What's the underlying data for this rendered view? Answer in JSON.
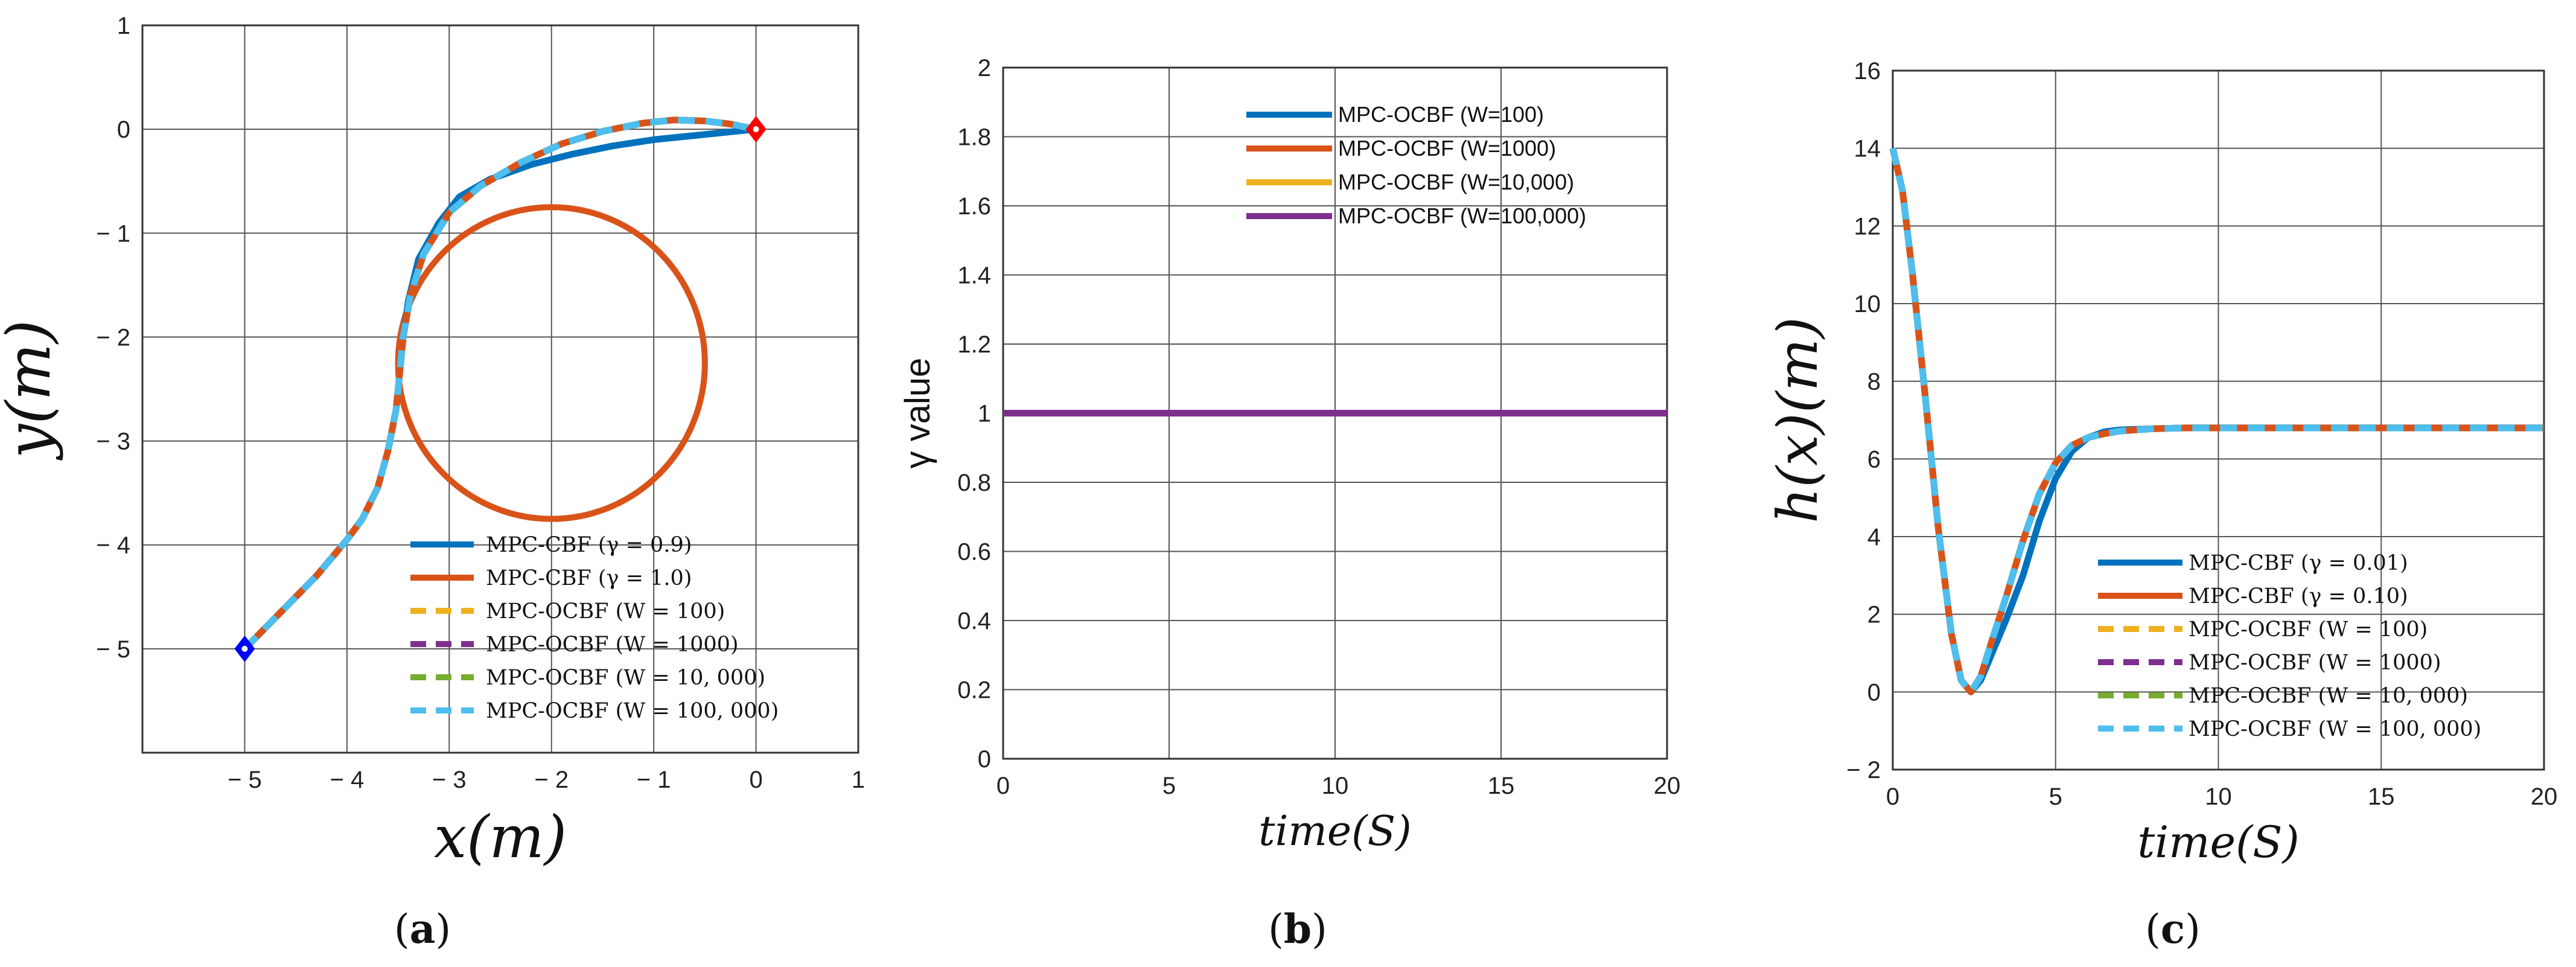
{
  "colors": {
    "blue": "#0072BD",
    "orange": "#D95319",
    "yellow": "#EDB120",
    "purple": "#7E2F8E",
    "green": "#77AC30",
    "cyan": "#4DBEEE",
    "grid": "#555555",
    "start_marker": "#0000ff",
    "end_marker": "#ff0000"
  },
  "chart_data": [
    {
      "id": "a",
      "type": "line",
      "panel_label": {
        "open": "(",
        "letter": "a",
        "close": ")"
      },
      "xlabel": "x(m)",
      "ylabel": "y(m)",
      "xlim": [
        -6,
        1
      ],
      "ylim": [
        -6,
        1
      ],
      "xticks": [
        -5,
        -4,
        -3,
        -2,
        -1,
        0,
        1
      ],
      "yticks": [
        -5,
        -4,
        -3,
        -2,
        -1,
        0,
        1
      ],
      "xtick_labels": [
        "− 5",
        "− 4",
        "− 3",
        "− 2",
        "− 1",
        "0",
        "1"
      ],
      "ytick_labels": [
        "− 5",
        "− 4",
        "− 3",
        "− 2",
        "− 1",
        "0",
        "1"
      ],
      "grid": true,
      "obstacle": {
        "name": "circular obstacle",
        "center": [
          -2,
          -2.25
        ],
        "radius": 1.5,
        "color": "orange"
      },
      "start_point": [
        -5,
        -5
      ],
      "goal_point": [
        0,
        0
      ],
      "series": [
        {
          "name": "MPC-CBF (γ = 0.9)",
          "color": "blue",
          "dashed": false,
          "x": [
            -5,
            -4.6,
            -4.3,
            -4.0,
            -3.85,
            -3.7,
            -3.6,
            -3.52,
            -3.48,
            -3.45,
            -3.4,
            -3.3,
            -3.1,
            -2.9,
            -2.6,
            -2.2,
            -1.8,
            -1.4,
            -1.0,
            -0.6,
            -0.3,
            0
          ],
          "y": [
            -5,
            -4.6,
            -4.3,
            -3.95,
            -3.75,
            -3.45,
            -3.1,
            -2.7,
            -2.3,
            -2.0,
            -1.65,
            -1.25,
            -0.9,
            -0.65,
            -0.48,
            -0.34,
            -0.24,
            -0.16,
            -0.1,
            -0.06,
            -0.03,
            0
          ]
        },
        {
          "name": "MPC-CBF (γ = 1.0)",
          "color": "orange",
          "dashed": false,
          "x": [
            -5,
            -4.6,
            -4.3,
            -4.0,
            -3.85,
            -3.7,
            -3.6,
            -3.52,
            -3.48,
            -3.45,
            -3.38,
            -3.25,
            -3.0,
            -2.7,
            -2.3,
            -1.9,
            -1.5,
            -1.1,
            -0.8,
            -0.5,
            -0.25,
            0
          ],
          "y": [
            -5,
            -4.6,
            -4.3,
            -3.95,
            -3.75,
            -3.45,
            -3.1,
            -2.7,
            -2.3,
            -2.0,
            -1.6,
            -1.2,
            -0.8,
            -0.55,
            -0.32,
            -0.14,
            -0.02,
            0.06,
            0.09,
            0.08,
            0.05,
            0
          ]
        },
        {
          "name": "MPC-OCBF (W = 100)",
          "color": "yellow",
          "dashed": true,
          "same_as": "MPC-CBF (γ = 1.0)"
        },
        {
          "name": "MPC-OCBF (W = 1000)",
          "color": "purple",
          "dashed": true,
          "same_as": "MPC-CBF (γ = 1.0)"
        },
        {
          "name": "MPC-OCBF (W = 10, 000)",
          "color": "green",
          "dashed": true,
          "same_as": "MPC-CBF (γ = 1.0)"
        },
        {
          "name": "MPC-OCBF (W = 100, 000)",
          "color": "cyan",
          "dashed": true,
          "same_as": "MPC-CBF (γ = 1.0)"
        }
      ],
      "legend": [
        {
          "label": "MPC-CBF (γ = 0.9)",
          "color": "blue",
          "dashed": false
        },
        {
          "label": "MPC-CBF (γ = 1.0)",
          "color": "orange",
          "dashed": false
        },
        {
          "label": "MPC-OCBF (W = 100)",
          "color": "yellow",
          "dashed": true
        },
        {
          "label": "MPC-OCBF (W = 1000)",
          "color": "purple",
          "dashed": true
        },
        {
          "label": "MPC-OCBF (W = 10, 000)",
          "color": "green",
          "dashed": true
        },
        {
          "label": "MPC-OCBF (W = 100, 000)",
          "color": "cyan",
          "dashed": true
        }
      ],
      "legend_position": "bottom-right"
    },
    {
      "id": "b",
      "type": "line",
      "panel_label": {
        "open": "(",
        "letter": "b",
        "close": ")"
      },
      "xlabel": "time(S)",
      "ylabel": "γ value",
      "xlim": [
        0,
        20
      ],
      "ylim": [
        0,
        2
      ],
      "xticks": [
        0,
        5,
        10,
        15,
        20
      ],
      "yticks": [
        0,
        0.2,
        0.4,
        0.6,
        0.8,
        1,
        1.2,
        1.4,
        1.6,
        1.8,
        2
      ],
      "xtick_labels": [
        "0",
        "5",
        "10",
        "15",
        "20"
      ],
      "ytick_labels": [
        "0",
        "0.2",
        "0.4",
        "0.6",
        "0.8",
        "1",
        "1.2",
        "1.4",
        "1.6",
        "1.8",
        "2"
      ],
      "grid": true,
      "series": [
        {
          "name": "MPC-OCBF (W=100)",
          "color": "blue",
          "x": [
            0,
            20
          ],
          "y": [
            1,
            1
          ]
        },
        {
          "name": "MPC-OCBF (W=1000)",
          "color": "orange",
          "x": [
            0,
            20
          ],
          "y": [
            1,
            1
          ]
        },
        {
          "name": "MPC-OCBF (W=10,000)",
          "color": "yellow",
          "x": [
            0,
            20
          ],
          "y": [
            1,
            1
          ]
        },
        {
          "name": "MPC-OCBF (W=100,000)",
          "color": "purple",
          "x": [
            0,
            20
          ],
          "y": [
            1,
            1
          ]
        }
      ],
      "legend": [
        {
          "label": "MPC-OCBF (W=100)",
          "color": "blue",
          "dashed": false
        },
        {
          "label": "MPC-OCBF (W=1000)",
          "color": "orange",
          "dashed": false
        },
        {
          "label": "MPC-OCBF (W=10,000)",
          "color": "yellow",
          "dashed": false
        },
        {
          "label": "MPC-OCBF (W=100,000)",
          "color": "purple",
          "dashed": false
        }
      ],
      "legend_position": "top-center"
    },
    {
      "id": "c",
      "type": "line",
      "panel_label": {
        "open": "(",
        "letter": "c",
        "close": ")"
      },
      "xlabel": "time(S)",
      "ylabel": "h(x)(m)",
      "xlim": [
        0,
        20
      ],
      "ylim": [
        -2,
        16
      ],
      "xticks": [
        0,
        5,
        10,
        15,
        20
      ],
      "yticks": [
        -2,
        0,
        2,
        4,
        6,
        8,
        10,
        12,
        14,
        16
      ],
      "xtick_labels": [
        "0",
        "5",
        "10",
        "15",
        "20"
      ],
      "ytick_labels": [
        "− 2",
        "0",
        "2",
        "4",
        "6",
        "8",
        "10",
        "12",
        "14",
        "16"
      ],
      "grid": true,
      "series": [
        {
          "name": "MPC-CBF (γ = 0.01)",
          "color": "blue",
          "dashed": false,
          "x": [
            0,
            0.3,
            0.6,
            1.0,
            1.4,
            1.8,
            2.1,
            2.4,
            2.7,
            3.0,
            3.5,
            4.0,
            4.5,
            5.0,
            5.5,
            6.0,
            6.5,
            7,
            8,
            9,
            10,
            12,
            15,
            20
          ],
          "y": [
            14,
            12.9,
            10.8,
            7.6,
            4.2,
            1.5,
            0.3,
            0.0,
            0.3,
            0.9,
            1.9,
            3.0,
            4.4,
            5.5,
            6.2,
            6.55,
            6.7,
            6.75,
            6.78,
            6.8,
            6.8,
            6.8,
            6.8,
            6.8
          ]
        },
        {
          "name": "MPC-CBF (γ = 0.10)",
          "color": "orange",
          "dashed": false,
          "x": [
            0,
            0.3,
            0.6,
            1.0,
            1.4,
            1.8,
            2.1,
            2.4,
            2.7,
            3.0,
            3.5,
            4.0,
            4.5,
            5.0,
            5.5,
            6.0,
            6.5,
            7,
            8,
            9,
            10,
            12,
            15,
            20
          ],
          "y": [
            14,
            12.9,
            10.8,
            7.6,
            4.2,
            1.5,
            0.3,
            0.0,
            0.4,
            1.2,
            2.5,
            3.9,
            5.1,
            5.9,
            6.35,
            6.55,
            6.65,
            6.72,
            6.78,
            6.8,
            6.8,
            6.8,
            6.8,
            6.8
          ]
        },
        {
          "name": "MPC-OCBF (W = 100)",
          "color": "yellow",
          "dashed": true,
          "same_as": "MPC-CBF (γ = 0.10)"
        },
        {
          "name": "MPC-OCBF (W = 1000)",
          "color": "purple",
          "dashed": true,
          "same_as": "MPC-CBF (γ = 0.10)"
        },
        {
          "name": "MPC-OCBF (W = 10, 000)",
          "color": "green",
          "dashed": true,
          "same_as": "MPC-CBF (γ = 0.10)"
        },
        {
          "name": "MPC-OCBF (W = 100, 000)",
          "color": "cyan",
          "dashed": true,
          "same_as": "MPC-CBF (γ = 0.10)"
        }
      ],
      "legend": [
        {
          "label": "MPC-CBF (γ = 0.01)",
          "color": "blue",
          "dashed": false
        },
        {
          "label": "MPC-CBF (γ = 0.10)",
          "color": "orange",
          "dashed": false
        },
        {
          "label": "MPC-OCBF (W = 100)",
          "color": "yellow",
          "dashed": true
        },
        {
          "label": "MPC-OCBF (W = 1000)",
          "color": "purple",
          "dashed": true
        },
        {
          "label": "MPC-OCBF (W = 10, 000)",
          "color": "green",
          "dashed": true
        },
        {
          "label": "MPC-OCBF (W = 100, 000)",
          "color": "cyan",
          "dashed": true
        }
      ],
      "legend_position": "bottom-right"
    }
  ]
}
